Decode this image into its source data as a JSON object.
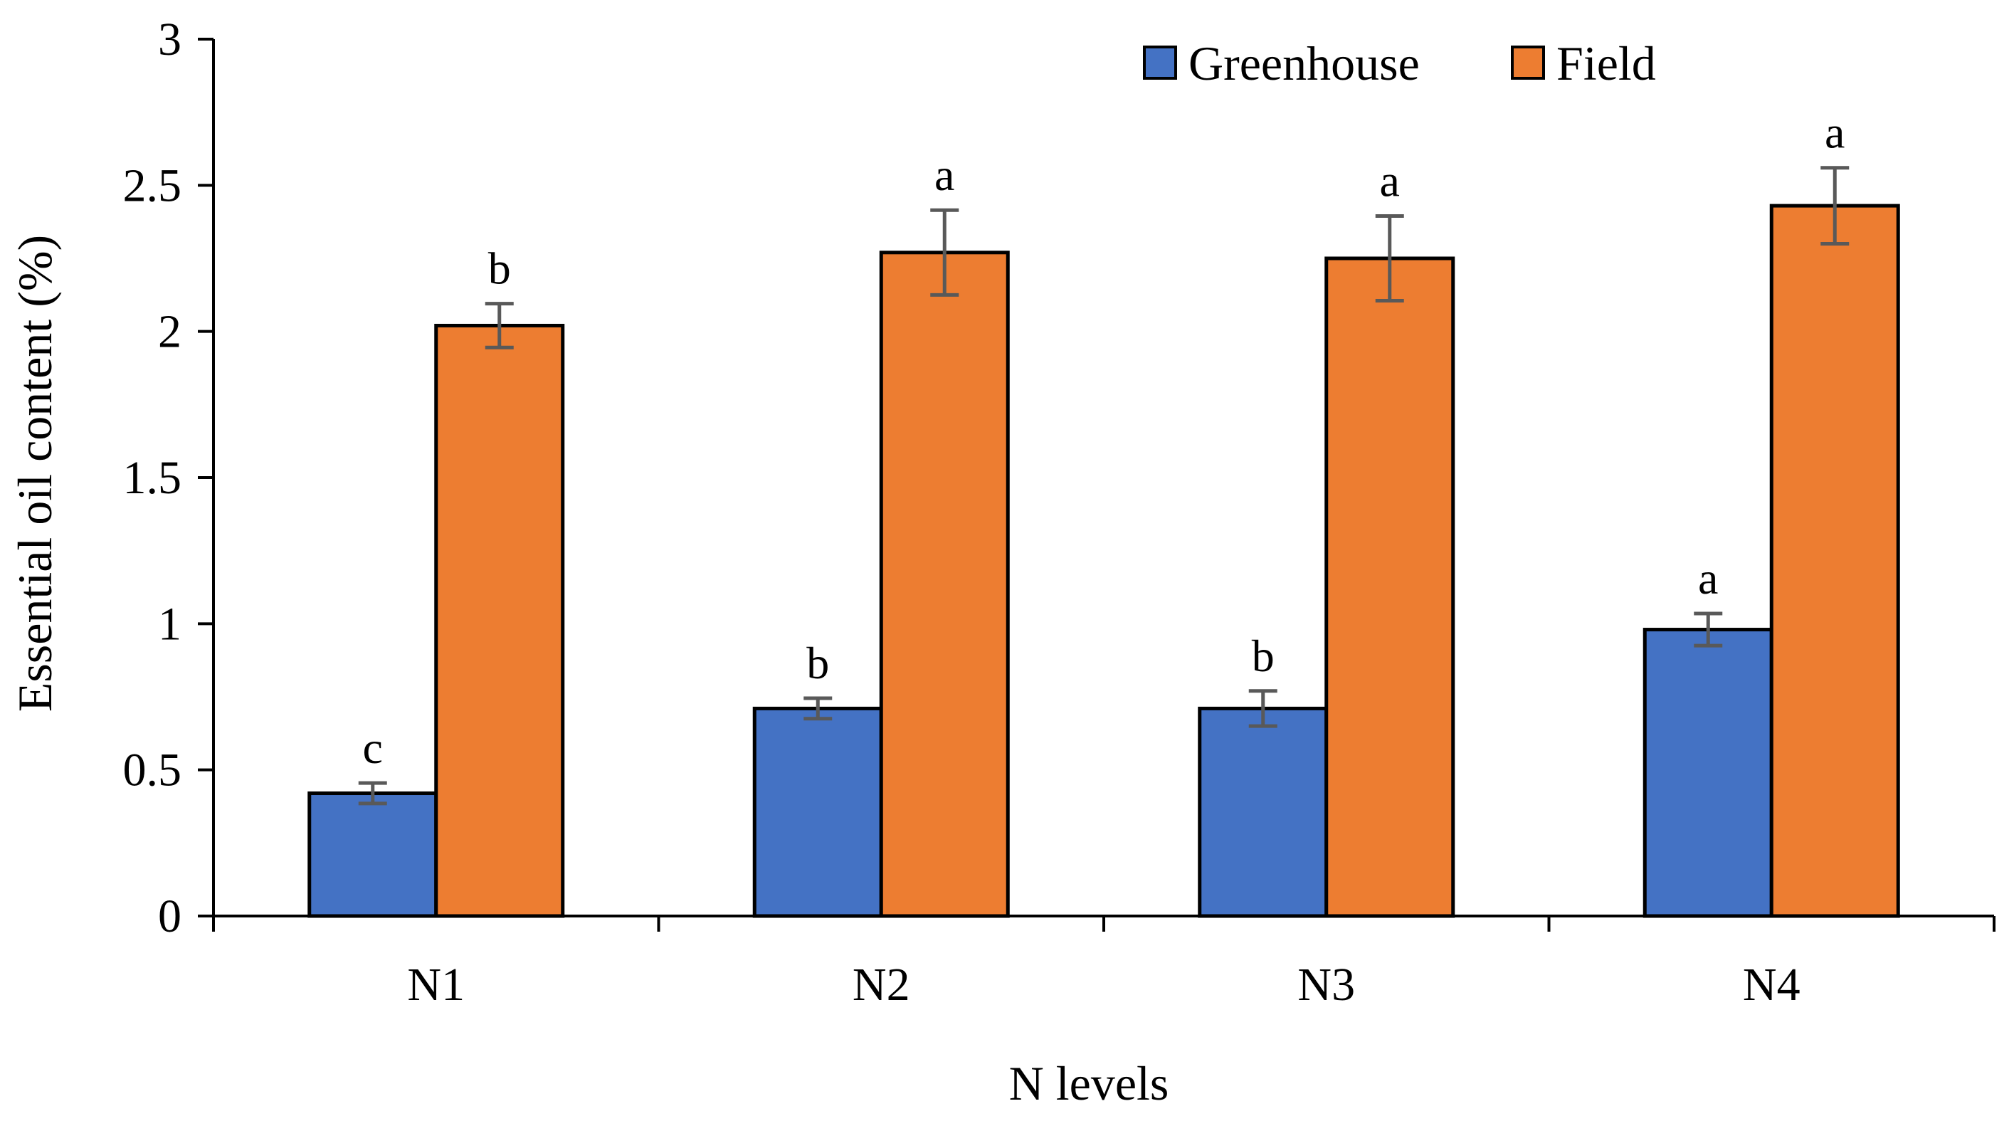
{
  "chart_data": {
    "type": "bar",
    "title": "",
    "xlabel": "N levels",
    "ylabel": "Essential oil content (%)",
    "ylim": [
      0,
      3
    ],
    "yticks": [
      0,
      0.5,
      1,
      1.5,
      2,
      2.5,
      3
    ],
    "ytick_labels": [
      "0",
      "0.5",
      "1",
      "1.5",
      "2",
      "2.5",
      "3"
    ],
    "categories": [
      "N1",
      "N2",
      "N3",
      "N4"
    ],
    "legend_position": "top-right",
    "series": [
      {
        "name": "Greenhouse",
        "color": "#4472C4",
        "values": [
          0.42,
          0.71,
          0.71,
          0.98
        ],
        "errors": [
          0.035,
          0.035,
          0.06,
          0.055
        ],
        "letters": [
          "c",
          "b",
          "b",
          "a"
        ]
      },
      {
        "name": "Field",
        "color": "#ED7D31",
        "values": [
          2.02,
          2.27,
          2.25,
          2.43
        ],
        "errors": [
          0.075,
          0.145,
          0.145,
          0.13
        ],
        "letters": [
          "b",
          "a",
          "a",
          "a"
        ]
      }
    ]
  }
}
